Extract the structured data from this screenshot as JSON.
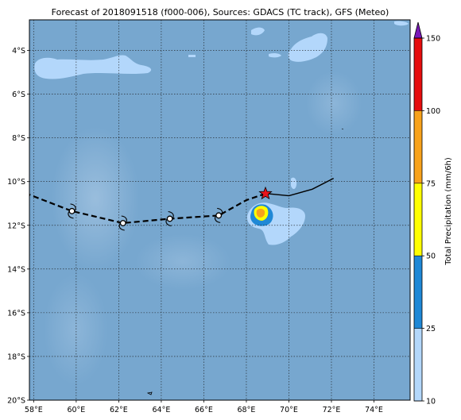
{
  "title": "Forecast of 2018091518 (f000-006), Sources: GDACS (TC track), GFS (Meteo)",
  "map": {
    "lon_range": [
      57.8,
      75.7
    ],
    "lat_range": [
      -20.0,
      -2.6
    ],
    "x_ticks": [
      {
        "value": 58,
        "label": "58°E"
      },
      {
        "value": 60,
        "label": "60°E"
      },
      {
        "value": 62,
        "label": "62°E"
      },
      {
        "value": 64,
        "label": "64°E"
      },
      {
        "value": 66,
        "label": "66°E"
      },
      {
        "value": 68,
        "label": "68°E"
      },
      {
        "value": 70,
        "label": "70°E"
      },
      {
        "value": 72,
        "label": "72°E"
      },
      {
        "value": 74,
        "label": "74°E"
      }
    ],
    "y_ticks": [
      {
        "value": -4,
        "label": "4°S"
      },
      {
        "value": -6,
        "label": "6°S"
      },
      {
        "value": -8,
        "label": "8°S"
      },
      {
        "value": -10,
        "label": "10°S"
      },
      {
        "value": -12,
        "label": "12°S"
      },
      {
        "value": -14,
        "label": "14°S"
      },
      {
        "value": -16,
        "label": "16°S"
      },
      {
        "value": -18,
        "label": "18°S"
      },
      {
        "value": -20,
        "label": "20°S"
      }
    ],
    "grid": true,
    "ocean_color": "#77a7cf"
  },
  "track": {
    "past": [
      [
        72.1,
        -9.85
      ],
      [
        71.1,
        -10.35
      ],
      [
        70.0,
        -10.65
      ],
      [
        69.0,
        -10.55
      ]
    ],
    "current": [
      68.9,
      -10.55
    ],
    "forecast": [
      [
        68.9,
        -10.55
      ],
      [
        68.0,
        -10.85
      ],
      [
        66.7,
        -11.55
      ],
      [
        64.4,
        -11.7
      ],
      [
        62.2,
        -11.9
      ],
      [
        59.8,
        -11.35
      ],
      [
        57.8,
        -10.6
      ]
    ],
    "forecast_points": [
      [
        59.8,
        -11.35
      ],
      [
        62.2,
        -11.9
      ],
      [
        64.4,
        -11.7
      ],
      [
        66.7,
        -11.55
      ]
    ],
    "current_color": "#e8141b",
    "track_color": "#000000"
  },
  "colorbar": {
    "label": "Total Precipitation (mm/6h)",
    "ticks": [
      {
        "value": 10,
        "label": "10"
      },
      {
        "value": 25,
        "label": "25"
      },
      {
        "value": 50,
        "label": "50"
      },
      {
        "value": 75,
        "label": "75"
      },
      {
        "value": 100,
        "label": "100"
      },
      {
        "value": 150,
        "label": "150"
      }
    ],
    "segments": [
      {
        "from": 10,
        "to": 25,
        "color": "#b3d7fb"
      },
      {
        "from": 25,
        "to": 50,
        "color": "#1f88d6"
      },
      {
        "from": 50,
        "to": 75,
        "color": "#ffff00"
      },
      {
        "from": 75,
        "to": 100,
        "color": "#f8a21b"
      },
      {
        "from": 100,
        "to": 150,
        "color": "#e60d0d"
      }
    ],
    "extend_color": "#7a18b8"
  }
}
